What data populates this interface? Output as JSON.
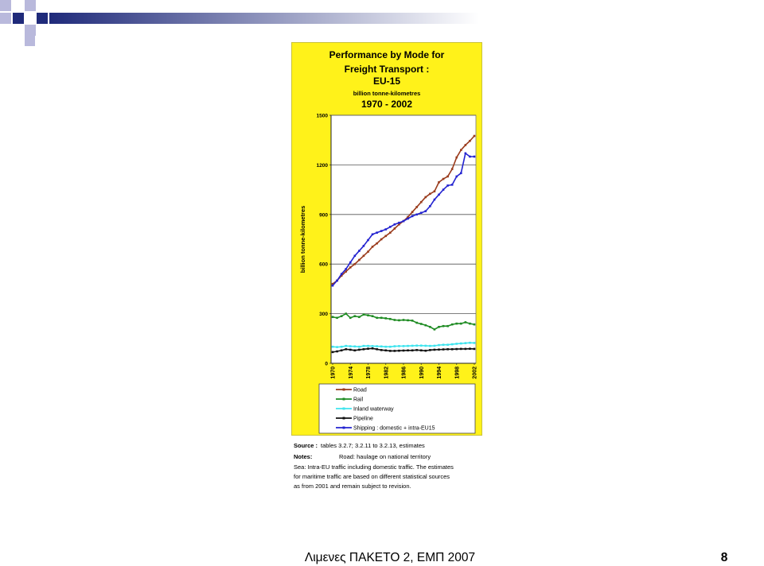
{
  "slide": {
    "footer_text": "Λιμενες ΠΑΚΕΤΟ 2, ΕΜΠ 2007",
    "page_number": "8",
    "colors": {
      "accent_navy": "#1F2A7A",
      "accent_lavender": "#B9B9DC",
      "panel_yellow": "#FFF21A"
    }
  },
  "chart_data": {
    "type": "line",
    "title_lines": [
      "Performance by Mode for",
      "Freight Transport :",
      "EU-15"
    ],
    "subtitle": "billion tonne-kilometres",
    "period": "1970 - 2002",
    "ylabel": "billion tonne-kilometres",
    "xlim": [
      1970,
      2002
    ],
    "ylim": [
      0,
      1500
    ],
    "x_ticks": [
      1970,
      1974,
      1978,
      1982,
      1986,
      1990,
      1994,
      1998,
      2002
    ],
    "y_ticks": [
      0,
      300,
      600,
      900,
      1200,
      1500
    ],
    "grid": true,
    "legend_position": "bottom",
    "x": [
      1970,
      1971,
      1972,
      1973,
      1974,
      1975,
      1976,
      1977,
      1978,
      1979,
      1980,
      1981,
      1982,
      1983,
      1984,
      1985,
      1986,
      1987,
      1988,
      1989,
      1990,
      1991,
      1992,
      1993,
      1994,
      1995,
      1996,
      1997,
      1998,
      1999,
      2000,
      2001,
      2002
    ],
    "series": [
      {
        "name": "Road",
        "color": "#9A3B1C",
        "values": [
          480,
          500,
          530,
          555,
          580,
          600,
          625,
          650,
          675,
          705,
          725,
          750,
          770,
          790,
          815,
          840,
          860,
          885,
          915,
          945,
          975,
          1005,
          1025,
          1040,
          1095,
          1115,
          1130,
          1175,
          1245,
          1290,
          1320,
          1345,
          1375
        ]
      },
      {
        "name": "Rail",
        "color": "#1E8B22",
        "values": [
          280,
          275,
          285,
          300,
          275,
          285,
          280,
          295,
          290,
          285,
          275,
          275,
          272,
          268,
          262,
          260,
          262,
          260,
          258,
          245,
          238,
          230,
          220,
          205,
          220,
          225,
          225,
          235,
          240,
          240,
          248,
          240,
          235
        ]
      },
      {
        "name": "Inland waterway",
        "color": "#3FE4EE",
        "values": [
          100,
          98,
          100,
          105,
          103,
          102,
          100,
          105,
          105,
          104,
          103,
          102,
          100,
          100,
          103,
          104,
          104,
          105,
          106,
          107,
          107,
          106,
          105,
          106,
          110,
          112,
          112,
          115,
          118,
          120,
          122,
          124,
          123
        ]
      },
      {
        "name": "Pipeline",
        "color": "#111111",
        "values": [
          68,
          72,
          78,
          85,
          82,
          78,
          82,
          85,
          88,
          90,
          85,
          80,
          78,
          75,
          75,
          76,
          77,
          78,
          78,
          80,
          78,
          76,
          80,
          82,
          83,
          84,
          85,
          85,
          86,
          87,
          87,
          88,
          87
        ]
      },
      {
        "name": "Shipping : domestic + intra-EU15",
        "color": "#2323D0",
        "values": [
          470,
          500,
          540,
          570,
          610,
          650,
          680,
          710,
          745,
          780,
          790,
          800,
          810,
          825,
          840,
          850,
          860,
          875,
          890,
          900,
          910,
          920,
          950,
          990,
          1020,
          1050,
          1075,
          1080,
          1130,
          1150,
          1270,
          1250,
          1250
        ]
      }
    ]
  },
  "notes": {
    "source_label": "Source :",
    "source_text": "tables 3.2.7; 3.2.11 to 3.2.13, estimates",
    "notes_label": "Notes:",
    "road_note": "Road: haulage on national territory",
    "lines": [
      "Sea: Intra-EU traffic including domestic traffic. The estimates",
      "for maritime traffic are based on different statistical sources",
      "as from 2001 and remain subject to revision."
    ]
  }
}
